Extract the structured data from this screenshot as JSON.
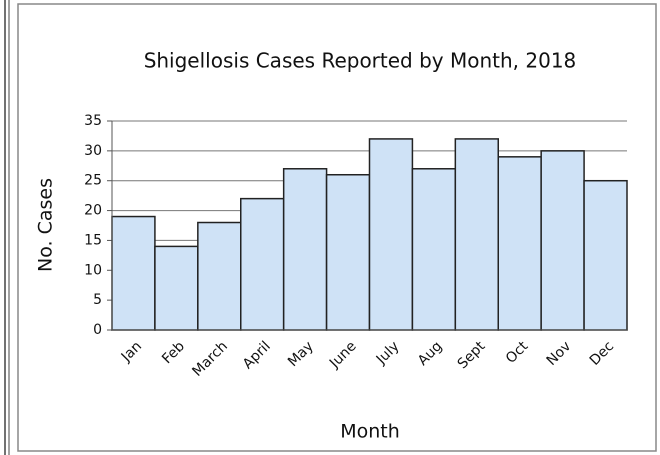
{
  "chart_data": {
    "type": "bar",
    "title": "Shigellosis Cases Reported by Month, 2018",
    "x_label": "Month",
    "y_label": "No. Cases",
    "categories": [
      "Jan",
      "Feb",
      "March",
      "April",
      "May",
      "June",
      "July",
      "Aug",
      "Sept",
      "Oct",
      "Nov",
      "Dec"
    ],
    "values": [
      19,
      14,
      18,
      22,
      27,
      26,
      32,
      27,
      32,
      29,
      30,
      25
    ],
    "color": "#cfe2f6",
    "ylim": [
      0,
      35
    ],
    "yticks": [
      0,
      5,
      10,
      15,
      20,
      25,
      30,
      35
    ],
    "grid": true
  }
}
